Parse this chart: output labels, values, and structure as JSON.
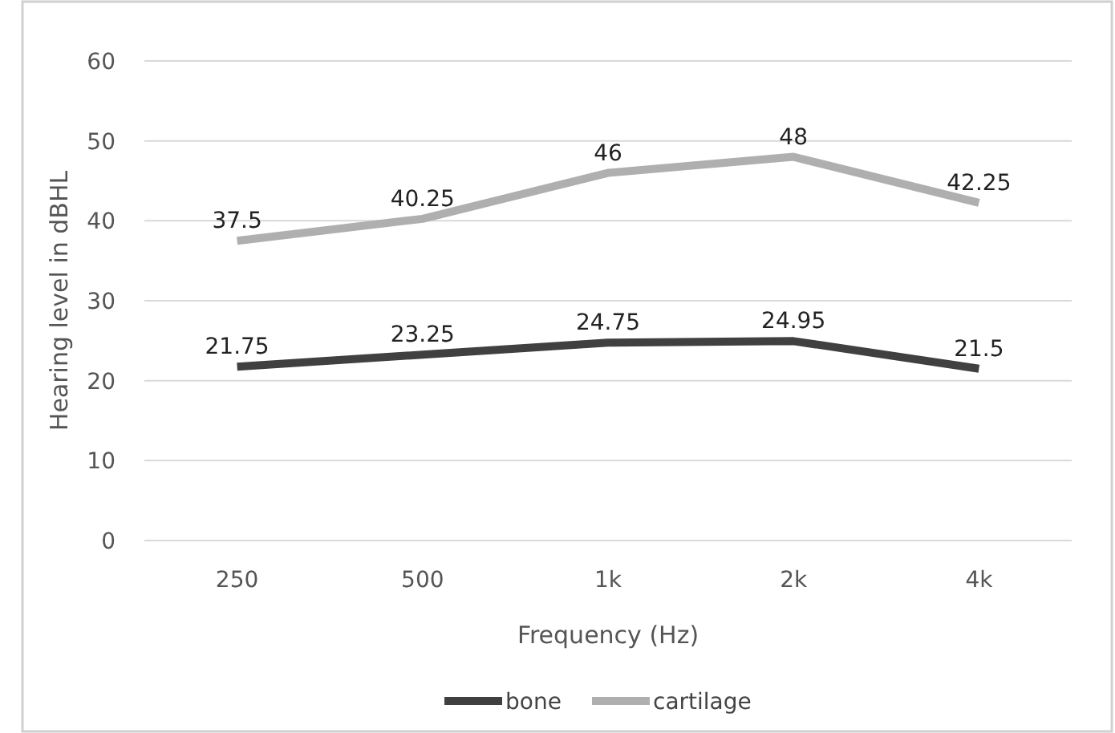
{
  "chart_data": {
    "type": "line",
    "xlabel": "Frequency (Hz)",
    "ylabel": "Hearing level in dBHL",
    "categories": [
      "250",
      "500",
      "1k",
      "2k",
      "4k"
    ],
    "series": [
      {
        "name": "bone",
        "color": "#404040",
        "values": [
          21.75,
          23.25,
          24.75,
          24.95,
          21.5
        ]
      },
      {
        "name": "cartilage",
        "color": "#afafaf",
        "values": [
          37.5,
          40.25,
          46,
          48,
          42.25
        ]
      }
    ],
    "ylim": [
      0,
      60
    ],
    "yticks": [
      0,
      10,
      20,
      30,
      40,
      50,
      60
    ],
    "grid": "y",
    "legend": "bottom",
    "data_labels": true,
    "marker": "none",
    "line_style": "solid"
  }
}
